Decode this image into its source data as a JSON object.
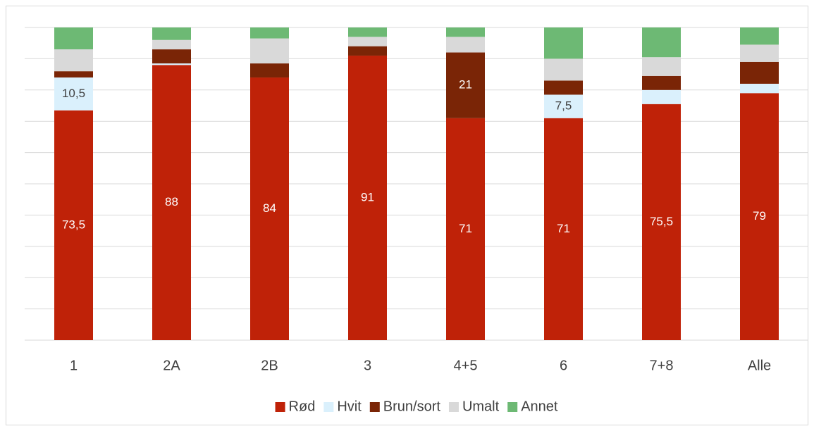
{
  "chart_data": {
    "type": "stacked_bar",
    "categories": [
      "1",
      "2A",
      "2B",
      "3",
      "4+5",
      "6",
      "7+8",
      "Alle"
    ],
    "series": [
      {
        "name": "Rød",
        "color": "#bf2208",
        "values": [
          73.5,
          88,
          84,
          91,
          71,
          71,
          75.5,
          79
        ],
        "value_labels": [
          "73,5",
          "88",
          "84",
          "91",
          "71",
          "71",
          "75,5",
          "79"
        ]
      },
      {
        "name": "Hvit",
        "color": "#daf0fc",
        "values": [
          10.5,
          0.5,
          0,
          0,
          0,
          7.5,
          4.5,
          3
        ],
        "value_labels": [
          "10,5",
          null,
          null,
          null,
          null,
          "7,5",
          null,
          null
        ]
      },
      {
        "name": "Brun/sort",
        "color": "#7a2506",
        "values": [
          2,
          4.5,
          4.5,
          3,
          21,
          4.5,
          4.5,
          7
        ],
        "value_labels": [
          null,
          null,
          null,
          null,
          "21",
          null,
          null,
          null
        ]
      },
      {
        "name": "Umalt",
        "color": "#d9d9d9",
        "values": [
          7,
          3,
          8,
          3,
          5,
          7,
          6,
          5.5
        ]
      },
      {
        "name": "Annet",
        "color": "#6db974",
        "values": [
          7,
          4,
          3.5,
          3,
          3,
          10,
          9.5,
          5.5
        ]
      }
    ],
    "ylim": [
      0,
      100
    ],
    "yticks": [
      0,
      10,
      20,
      30,
      40,
      50,
      60,
      70,
      80,
      90,
      100
    ],
    "grid": true,
    "legend": "bottom"
  }
}
